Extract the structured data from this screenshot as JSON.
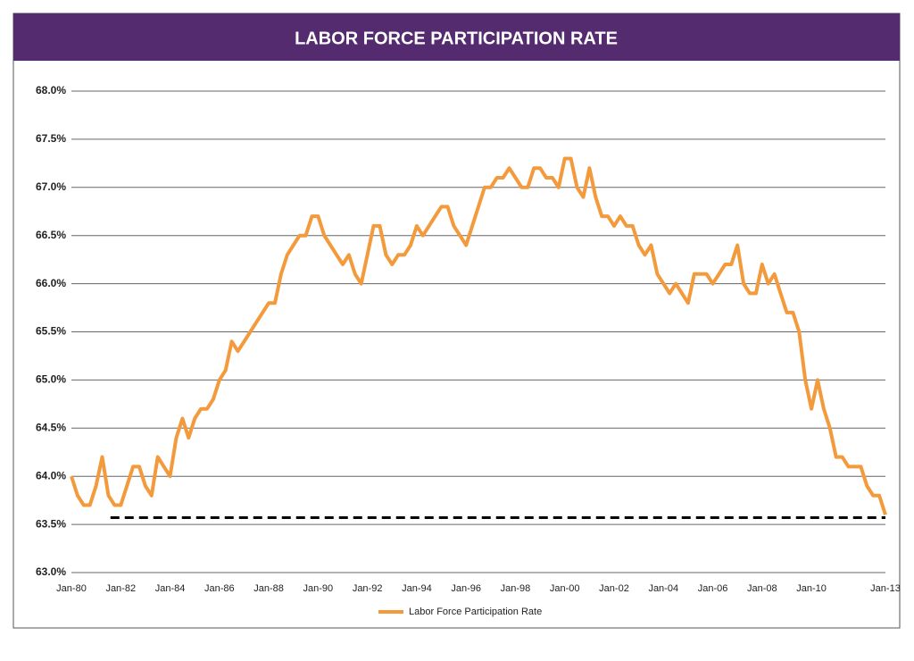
{
  "chart_data": {
    "type": "line",
    "title": "LABOR FORCE PARTICIPATION RATE",
    "x": [
      "1980-01",
      "1980-04",
      "1980-07",
      "1980-10",
      "1981-01",
      "1981-04",
      "1981-07",
      "1981-10",
      "1982-01",
      "1982-04",
      "1982-07",
      "1982-10",
      "1983-01",
      "1983-04",
      "1983-07",
      "1983-10",
      "1984-01",
      "1984-04",
      "1984-07",
      "1984-10",
      "1985-01",
      "1985-04",
      "1985-07",
      "1985-10",
      "1986-01",
      "1986-04",
      "1986-07",
      "1986-10",
      "1987-01",
      "1987-04",
      "1987-07",
      "1987-10",
      "1988-01",
      "1988-04",
      "1988-07",
      "1988-10",
      "1989-01",
      "1989-04",
      "1989-07",
      "1989-10",
      "1990-01",
      "1990-04",
      "1990-07",
      "1990-10",
      "1991-01",
      "1991-04",
      "1991-07",
      "1991-10",
      "1992-01",
      "1992-04",
      "1992-07",
      "1992-10",
      "1993-01",
      "1993-04",
      "1993-07",
      "1993-10",
      "1994-01",
      "1994-04",
      "1994-07",
      "1994-10",
      "1995-01",
      "1995-04",
      "1995-07",
      "1995-10",
      "1996-01",
      "1996-04",
      "1996-07",
      "1996-10",
      "1997-01",
      "1997-04",
      "1997-07",
      "1997-10",
      "1998-01",
      "1998-04",
      "1998-07",
      "1998-10",
      "1999-01",
      "1999-04",
      "1999-07",
      "1999-10",
      "2000-01",
      "2000-04",
      "2000-07",
      "2000-10",
      "2001-01",
      "2001-04",
      "2001-07",
      "2001-10",
      "2002-01",
      "2002-04",
      "2002-07",
      "2002-10",
      "2003-01",
      "2003-04",
      "2003-07",
      "2003-10",
      "2004-01",
      "2004-04",
      "2004-07",
      "2004-10",
      "2005-01",
      "2005-04",
      "2005-07",
      "2005-10",
      "2006-01",
      "2006-04",
      "2006-07",
      "2006-10",
      "2007-01",
      "2007-04",
      "2007-07",
      "2007-10",
      "2008-01",
      "2008-04",
      "2008-07",
      "2008-10",
      "2009-01",
      "2009-04",
      "2009-07",
      "2009-10",
      "2010-01",
      "2010-04",
      "2010-07",
      "2010-10",
      "2011-01",
      "2011-04",
      "2011-07",
      "2011-10",
      "2012-01",
      "2012-04",
      "2012-07",
      "2012-10",
      "2013-01"
    ],
    "series": [
      {
        "name": "Labor Force Participation Rate",
        "color": "#f39a3c",
        "values": [
          64.0,
          63.8,
          63.7,
          63.7,
          63.9,
          64.2,
          63.8,
          63.7,
          63.7,
          63.9,
          64.1,
          64.1,
          63.9,
          63.8,
          64.2,
          64.1,
          64.0,
          64.4,
          64.6,
          64.4,
          64.6,
          64.7,
          64.7,
          64.8,
          65.0,
          65.1,
          65.4,
          65.3,
          65.4,
          65.5,
          65.6,
          65.7,
          65.8,
          65.8,
          66.1,
          66.3,
          66.4,
          66.5,
          66.5,
          66.7,
          66.7,
          66.5,
          66.4,
          66.3,
          66.2,
          66.3,
          66.1,
          66.0,
          66.3,
          66.6,
          66.6,
          66.3,
          66.2,
          66.3,
          66.3,
          66.4,
          66.6,
          66.5,
          66.6,
          66.7,
          66.8,
          66.8,
          66.6,
          66.5,
          66.4,
          66.6,
          66.8,
          67.0,
          67.0,
          67.1,
          67.1,
          67.2,
          67.1,
          67.0,
          67.0,
          67.2,
          67.2,
          67.1,
          67.1,
          67.0,
          67.3,
          67.3,
          67.0,
          66.9,
          67.2,
          66.9,
          66.7,
          66.7,
          66.6,
          66.7,
          66.6,
          66.6,
          66.4,
          66.3,
          66.4,
          66.1,
          66.0,
          65.9,
          66.0,
          65.9,
          65.8,
          66.1,
          66.1,
          66.1,
          66.0,
          66.1,
          66.2,
          66.2,
          66.4,
          66.0,
          65.9,
          65.9,
          66.2,
          66.0,
          66.1,
          65.9,
          65.7,
          65.7,
          65.5,
          65.0,
          64.7,
          65.0,
          64.7,
          64.5,
          64.2,
          64.2,
          64.1,
          64.1,
          64.1,
          63.9,
          63.8,
          63.8,
          63.6
        ]
      }
    ],
    "xlim": [
      "1980-01",
      "2013-01"
    ],
    "xticks": [
      {
        "value": "1980-01",
        "label": "Jan-80"
      },
      {
        "value": "1982-01",
        "label": "Jan-82"
      },
      {
        "value": "1984-01",
        "label": "Jan-84"
      },
      {
        "value": "1986-01",
        "label": "Jan-86"
      },
      {
        "value": "1988-01",
        "label": "Jan-88"
      },
      {
        "value": "1990-01",
        "label": "Jan-90"
      },
      {
        "value": "1992-01",
        "label": "Jan-92"
      },
      {
        "value": "1994-01",
        "label": "Jan-94"
      },
      {
        "value": "1996-01",
        "label": "Jan-96"
      },
      {
        "value": "1998-01",
        "label": "Jan-98"
      },
      {
        "value": "2000-01",
        "label": "Jan-00"
      },
      {
        "value": "2002-01",
        "label": "Jan-02"
      },
      {
        "value": "2004-01",
        "label": "Jan-04"
      },
      {
        "value": "2006-01",
        "label": "Jan-06"
      },
      {
        "value": "2008-01",
        "label": "Jan-08"
      },
      {
        "value": "2010-01",
        "label": "Jan-10"
      },
      {
        "value": "2013-01",
        "label": "Jan-13"
      }
    ],
    "ylim": [
      63,
      68
    ],
    "yticks": [
      {
        "value": 63,
        "label": "63.0%"
      },
      {
        "value": 63.5,
        "label": "63.5%"
      },
      {
        "value": 64,
        "label": "64.0%"
      },
      {
        "value": 64.5,
        "label": "64.5%"
      },
      {
        "value": 65,
        "label": "65.0%"
      },
      {
        "value": 65.5,
        "label": "65.5%"
      },
      {
        "value": 66,
        "label": "66.0%"
      },
      {
        "value": 66.5,
        "label": "66.5%"
      },
      {
        "value": 67,
        "label": "67.0%"
      },
      {
        "value": 67.5,
        "label": "67.5%"
      },
      {
        "value": 68,
        "label": "68.0%"
      }
    ],
    "grid": true,
    "reference_line": {
      "value": 63.57,
      "from": "1981-08",
      "to": "2013-01",
      "color": "#000000",
      "style": "dashed"
    },
    "legend": "bottom"
  }
}
